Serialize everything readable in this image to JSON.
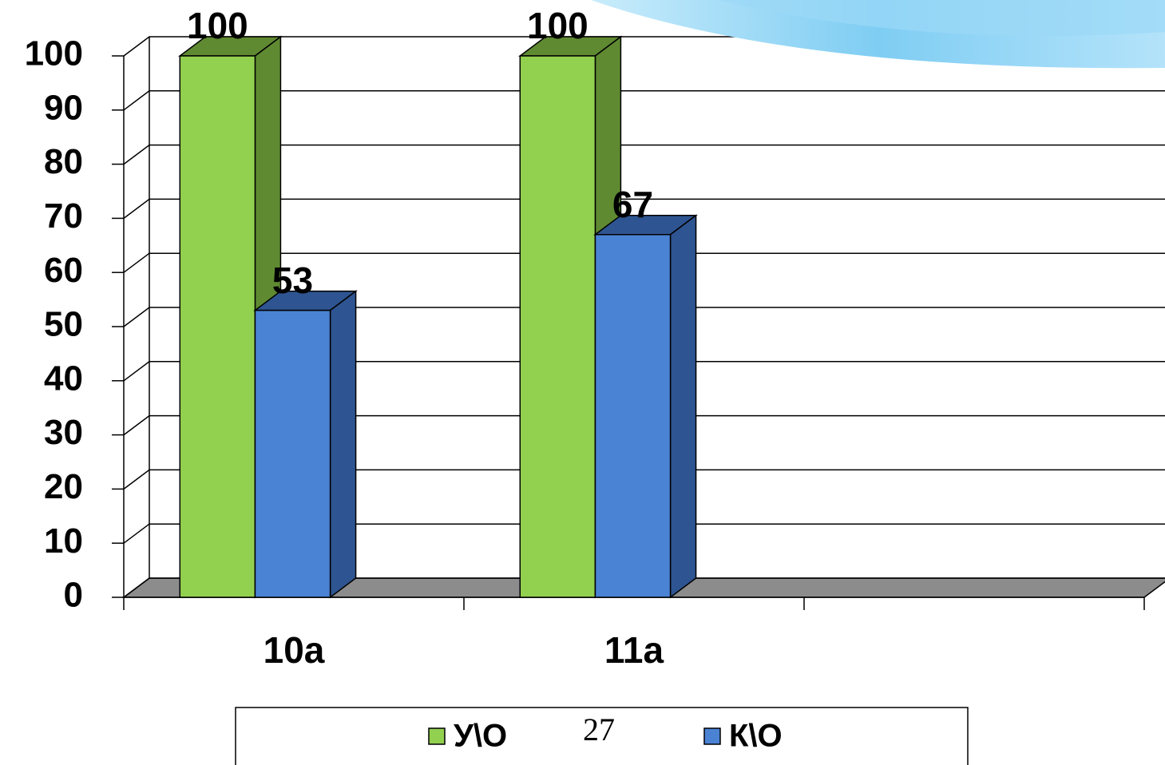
{
  "chart_data": {
    "type": "bar3d",
    "categories": [
      "10а",
      "11а",
      null
    ],
    "series": [
      {
        "name": "У\\О",
        "color": "#92d050",
        "side_color": "#5f8a32",
        "values": [
          100,
          100,
          null
        ]
      },
      {
        "name": "К\\О",
        "color": "#4a82d4",
        "side_color": "#2e5591",
        "values": [
          53,
          67,
          null
        ]
      }
    ],
    "ylim": [
      0,
      100
    ],
    "yticks": [
      0,
      10,
      20,
      30,
      40,
      50,
      60,
      70,
      80,
      90,
      100
    ],
    "grid": true
  },
  "slide_number": "27"
}
